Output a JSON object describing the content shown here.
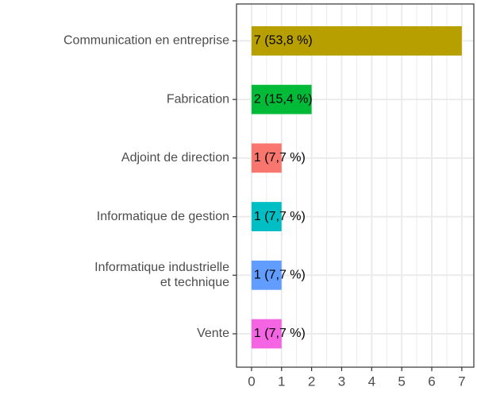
{
  "chart_data": {
    "type": "bar",
    "orientation": "horizontal",
    "categories": [
      "Communication en entreprise",
      "Fabrication",
      "Adjoint de direction",
      "Informatique de gestion",
      "Informatique industrielle\net technique",
      "Vente"
    ],
    "values": [
      7,
      2,
      1,
      1,
      1,
      1
    ],
    "value_labels": [
      "7 (53,8 %)",
      "2 (15,4 %)",
      "1 (7,7 %)",
      "1 (7,7 %)",
      "1 (7,7 %)",
      "1 (7,7 %)"
    ],
    "colors": [
      "#b79f00",
      "#00ba38",
      "#f8766d",
      "#00bfc4",
      "#619cff",
      "#f564e3"
    ],
    "xlim": [
      -0.5,
      7.4
    ],
    "xticks": [
      0,
      1,
      2,
      3,
      4,
      5,
      6,
      7
    ],
    "grid": true
  }
}
